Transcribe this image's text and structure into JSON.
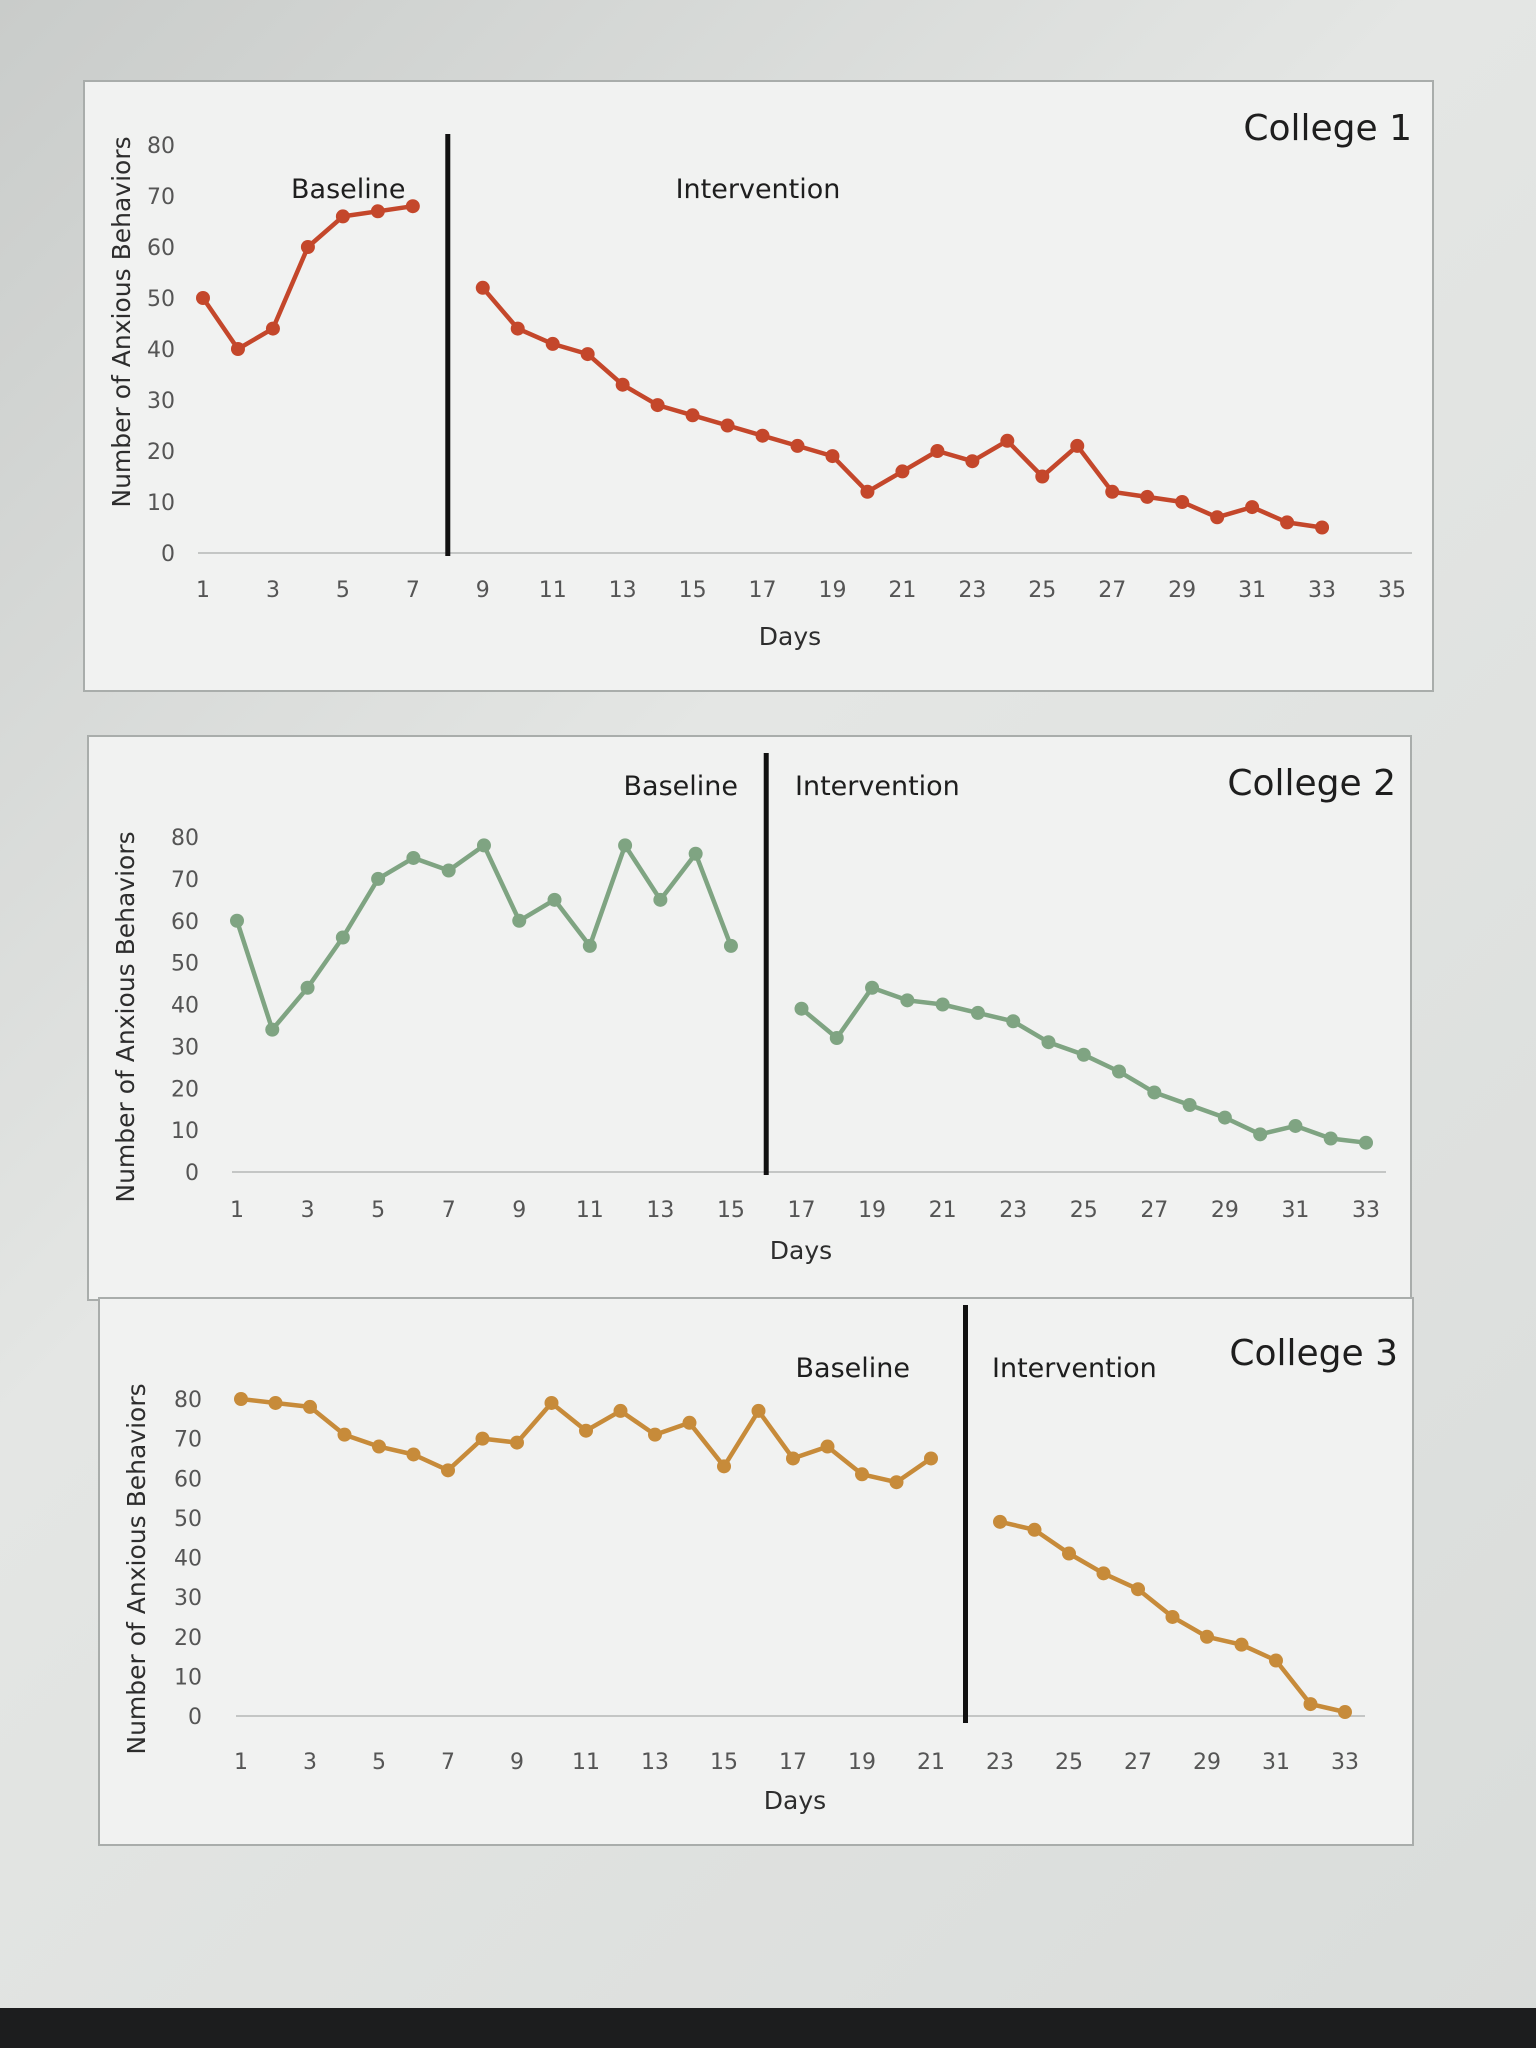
{
  "chart_data": [
    {
      "type": "line",
      "title": "College 1",
      "xlabel": "Days",
      "ylabel": "Number of Anxious Behaviors",
      "ylim": [
        0,
        80
      ],
      "xlim": [
        1,
        35
      ],
      "yticks": [
        "0",
        "10",
        "20",
        "30",
        "40",
        "50",
        "60",
        "70",
        "80"
      ],
      "xticks": [
        "1",
        "3",
        "5",
        "7",
        "9",
        "11",
        "13",
        "15",
        "17",
        "19",
        "21",
        "23",
        "25",
        "27",
        "29",
        "31",
        "33",
        "35"
      ],
      "phase_labels": [
        "Baseline",
        "Intervention"
      ],
      "phase_change_x": 8,
      "color": "#c4472b",
      "series": [
        {
          "x": [
            1,
            2,
            3,
            4,
            5,
            6,
            7
          ],
          "values": [
            50,
            40,
            44,
            60,
            66,
            67,
            68
          ]
        },
        {
          "x": [
            9,
            10,
            11,
            12,
            13,
            14,
            15,
            16,
            17,
            18,
            19,
            20,
            21,
            22,
            23,
            24,
            25,
            26,
            27,
            28,
            29,
            30,
            31,
            32,
            33
          ],
          "values": [
            52,
            44,
            41,
            39,
            33,
            29,
            27,
            25,
            23,
            21,
            19,
            12,
            16,
            20,
            18,
            22,
            15,
            21,
            12,
            11,
            10,
            7,
            9,
            6,
            5
          ]
        }
      ]
    },
    {
      "type": "line",
      "title": "College 2",
      "xlabel": "Days",
      "ylabel": "Number of Anxious Behaviors",
      "ylim": [
        0,
        80
      ],
      "xlim": [
        1,
        33
      ],
      "yticks": [
        "0",
        "10",
        "20",
        "30",
        "40",
        "50",
        "60",
        "70",
        "80"
      ],
      "xticks": [
        "1",
        "3",
        "5",
        "7",
        "9",
        "11",
        "13",
        "15",
        "17",
        "19",
        "21",
        "23",
        "25",
        "27",
        "29",
        "31",
        "33"
      ],
      "phase_labels": [
        "Baseline",
        "Intervention"
      ],
      "phase_change_x": 16,
      "color": "#7fa482",
      "series": [
        {
          "x": [
            1,
            2,
            3,
            4,
            5,
            6,
            7,
            8,
            9,
            10,
            11,
            12,
            13,
            14,
            15
          ],
          "values": [
            60,
            34,
            44,
            56,
            70,
            75,
            72,
            78,
            60,
            65,
            54,
            78,
            65,
            76,
            54
          ]
        },
        {
          "x": [
            17,
            18,
            19,
            20,
            21,
            22,
            23,
            24,
            25,
            26,
            27,
            28,
            29,
            30,
            31,
            32,
            33
          ],
          "values": [
            39,
            32,
            44,
            41,
            40,
            38,
            36,
            31,
            28,
            24,
            19,
            16,
            13,
            9,
            11,
            8,
            7
          ]
        }
      ]
    },
    {
      "type": "line",
      "title": "College 3",
      "xlabel": "Days",
      "ylabel": "Number of Anxious Behaviors",
      "ylim": [
        0,
        80
      ],
      "xlim": [
        1,
        33
      ],
      "yticks": [
        "0",
        "10",
        "20",
        "30",
        "40",
        "50",
        "60",
        "70",
        "80"
      ],
      "xticks": [
        "1",
        "3",
        "5",
        "7",
        "9",
        "11",
        "13",
        "15",
        "17",
        "19",
        "21",
        "23",
        "25",
        "27",
        "29",
        "31",
        "33"
      ],
      "phase_labels": [
        "Baseline",
        "Intervention"
      ],
      "phase_change_x": 22,
      "color": "#c78b3a",
      "series": [
        {
          "x": [
            1,
            2,
            3,
            4,
            5,
            6,
            7,
            8,
            9,
            10,
            11,
            12,
            13,
            14,
            15,
            16,
            17,
            18,
            19,
            20,
            21
          ],
          "values": [
            80,
            79,
            78,
            71,
            68,
            66,
            62,
            70,
            69,
            79,
            72,
            77,
            71,
            74,
            63,
            77,
            65,
            68,
            61,
            59,
            65
          ]
        },
        {
          "x": [
            23,
            24,
            25,
            26,
            27,
            28,
            29,
            30,
            31,
            32,
            33
          ],
          "values": [
            49,
            47,
            41,
            36,
            32,
            25,
            20,
            18,
            14,
            3,
            1
          ]
        }
      ]
    }
  ]
}
